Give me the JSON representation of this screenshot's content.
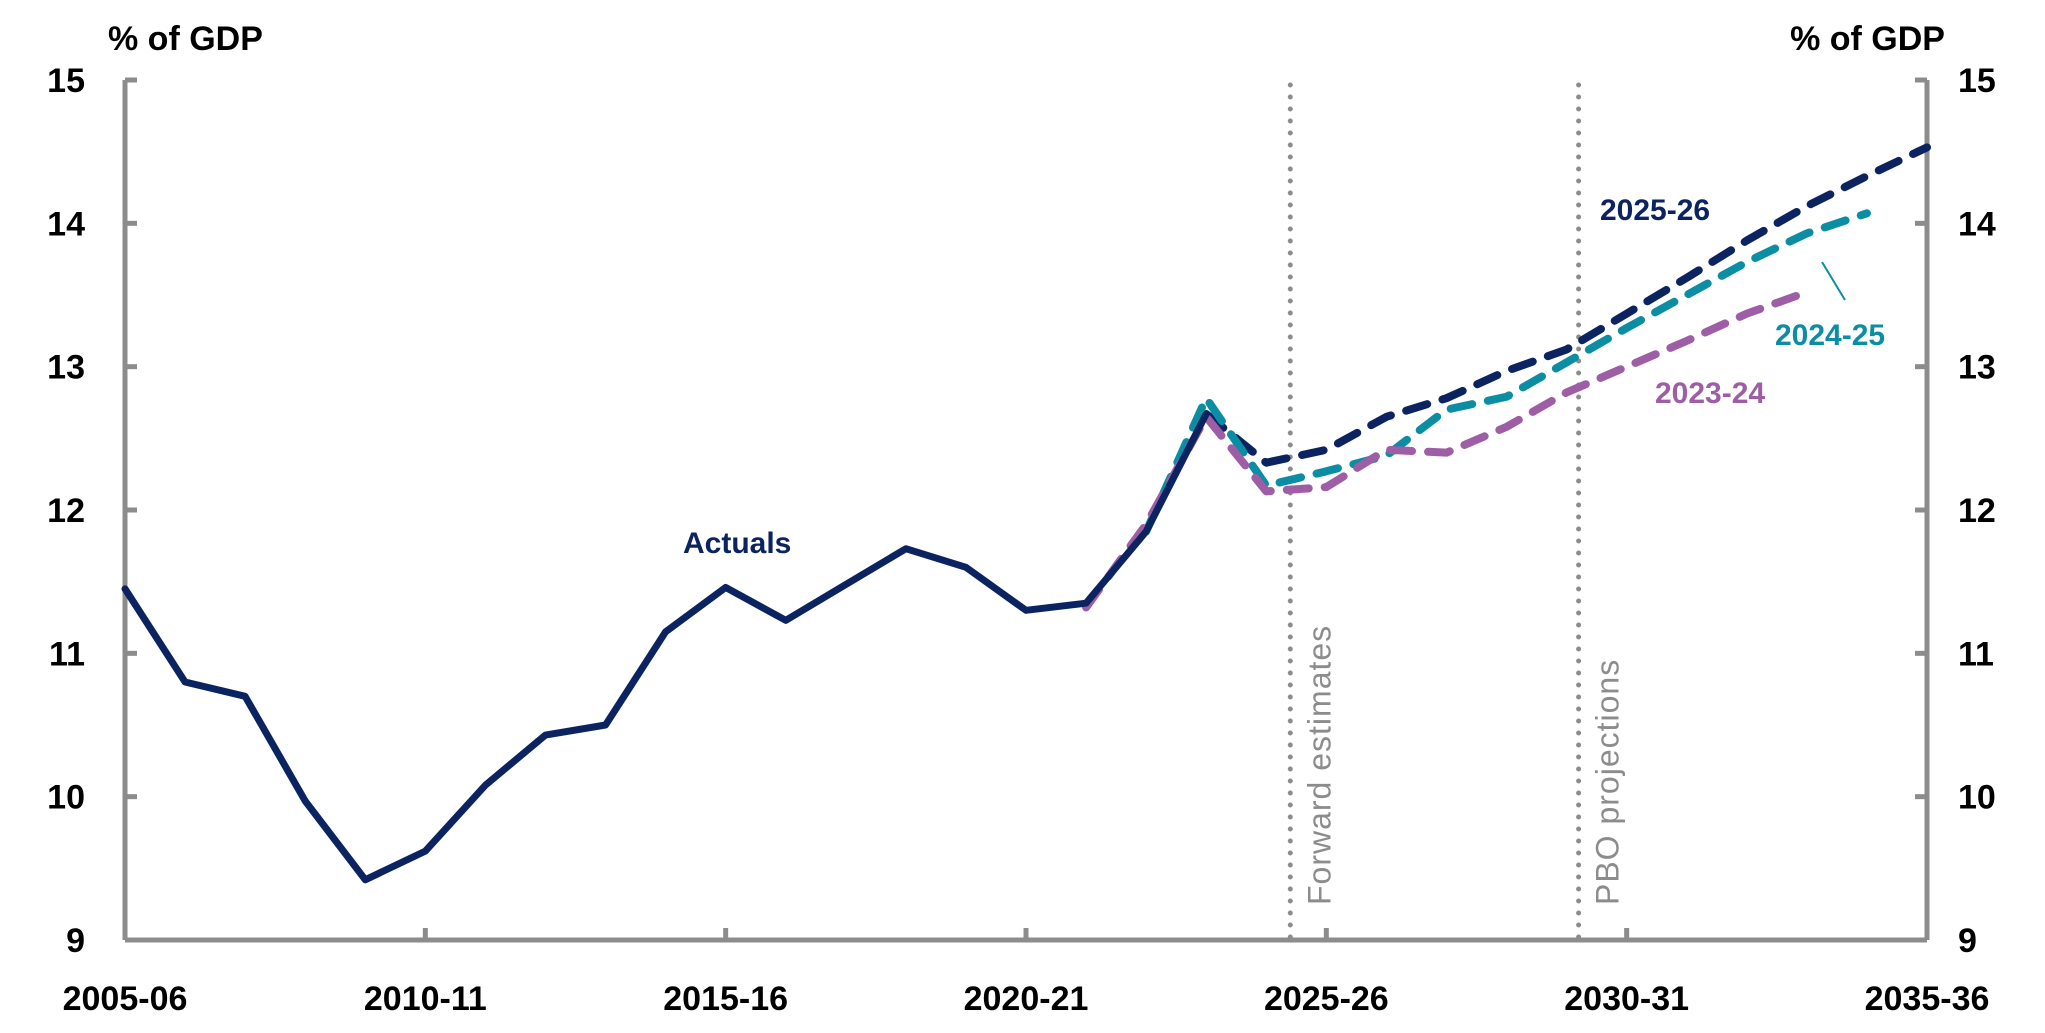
{
  "chart_data": {
    "type": "line",
    "title": "",
    "ylabel_left": "% of GDP",
    "ylabel_right": "% of GDP",
    "ylim": [
      9,
      15
    ],
    "yticks": [
      "9",
      "10",
      "11",
      "12",
      "13",
      "14",
      "15"
    ],
    "xticks": [
      "2005-06",
      "2010-11",
      "2015-16",
      "2020-21",
      "2025-26",
      "2030-31",
      "2035-36"
    ],
    "x_start_year": 2005,
    "x_end_year": 2035,
    "series": [
      {
        "name": "Actuals",
        "color": "#0b2461",
        "style": "solid",
        "start": 2005,
        "values": [
          11.45,
          10.8,
          10.7,
          9.97,
          9.42,
          9.62,
          10.08,
          10.43,
          10.5,
          11.15,
          11.46,
          11.23,
          11.48,
          11.73,
          11.6,
          11.3,
          11.35,
          11.85,
          12.67
        ]
      },
      {
        "name": "2023-24",
        "color": "#9e5ea6",
        "style": "dashed",
        "start": 2021,
        "values": [
          11.32,
          11.9,
          12.65,
          12.13,
          12.16,
          12.42,
          12.4,
          12.58,
          12.82,
          13.0,
          13.18,
          13.37,
          13.52
        ]
      },
      {
        "name": "2024-25",
        "color": "#0b8ea3",
        "style": "dashed",
        "start": 2022,
        "values": [
          11.85,
          12.78,
          12.17,
          12.27,
          12.38,
          12.7,
          12.79,
          13.03,
          13.27,
          13.5,
          13.73,
          13.93,
          14.07
        ]
      },
      {
        "name": "2025-26",
        "color": "#0b2461",
        "style": "dashed",
        "start": 2023,
        "values": [
          12.67,
          12.33,
          12.42,
          12.65,
          12.78,
          12.97,
          13.12,
          13.37,
          13.62,
          13.88,
          14.12,
          14.33,
          14.53
        ]
      }
    ],
    "reference_lines": [
      {
        "label": "Forward estimates",
        "year": 2024.4
      },
      {
        "label": "PBO projections",
        "year": 2029.2
      }
    ]
  }
}
